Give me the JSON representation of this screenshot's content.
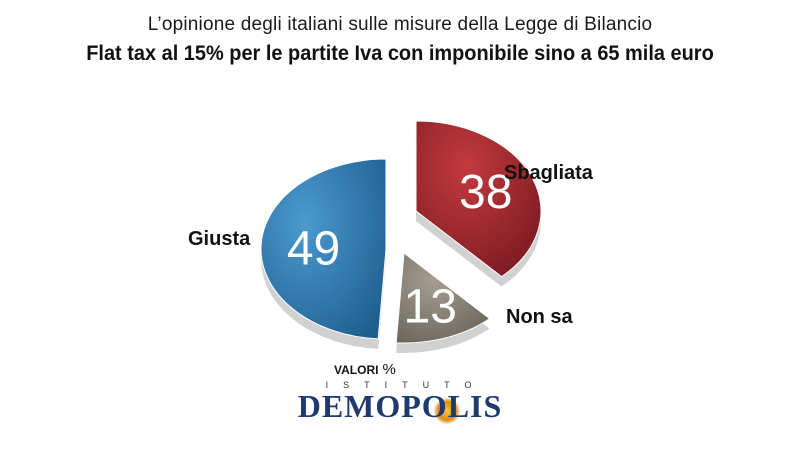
{
  "header": {
    "subtitle": "L’opinione degli italiani sulle misure della Legge di Bilancio",
    "title": "Flat tax al 15% per le partite Iva con imponibile sino a 65 mila euro"
  },
  "chart_data": {
    "type": "pie",
    "slices": [
      {
        "label": "Giusta",
        "value": 49,
        "color": "#2a7ab5"
      },
      {
        "label": "Sbagliata",
        "value": 38,
        "color": "#a3262d"
      },
      {
        "label": "Non sa",
        "value": 13,
        "color": "#8a8276"
      }
    ],
    "unit_note": "VALORI",
    "unit_symbol": "%"
  },
  "logo": {
    "top": "ISTITUTO",
    "main": "DEMOPOLIS"
  }
}
